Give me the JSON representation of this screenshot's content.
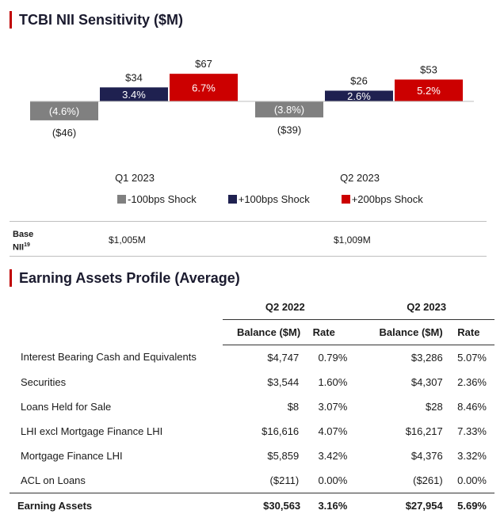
{
  "nii": {
    "title": "TCBI NII Sensitivity ($M)",
    "chart_data": {
      "type": "bar",
      "categories": [
        "Q1 2023",
        "Q2 2023"
      ],
      "series": [
        {
          "name": "-100bps Shock",
          "color": "#808080",
          "values": [
            -46,
            -39
          ],
          "value_labels": [
            "($46)",
            "($39)"
          ],
          "pct_labels": [
            "(4.6%)",
            "(3.8%)"
          ]
        },
        {
          "name": "+100bps Shock",
          "color": "#1f2150",
          "values": [
            34,
            26
          ],
          "value_labels": [
            "$34",
            "$26"
          ],
          "pct_labels": [
            "3.4%",
            "2.6%"
          ]
        },
        {
          "name": "+200bps Shock",
          "color": "#cc0000",
          "values": [
            67,
            53
          ],
          "value_labels": [
            "$67",
            "$53"
          ],
          "pct_labels": [
            "6.7%",
            "5.2%"
          ]
        }
      ],
      "legend_position": "bottom",
      "grid": false
    },
    "base": {
      "label": "Base",
      "label2": "NII",
      "footnote": "19",
      "values": [
        "$1,005M",
        "$1,009M"
      ]
    }
  },
  "earning_assets": {
    "title": "Earning Assets Profile (Average)",
    "periods": [
      "Q2 2022",
      "Q2 2023"
    ],
    "col_headers": [
      "Balance ($M)",
      "Rate",
      "Balance ($M)",
      "Rate"
    ],
    "rows": [
      {
        "label": "Interest Bearing Cash and Equivalents",
        "b1": "$4,747",
        "r1": "0.79%",
        "b2": "$3,286",
        "r2": "5.07%"
      },
      {
        "label": "Securities",
        "b1": "$3,544",
        "r1": "1.60%",
        "b2": "$4,307",
        "r2": "2.36%"
      },
      {
        "label": "Loans Held for Sale",
        "b1": "$8",
        "r1": "3.07%",
        "b2": "$28",
        "r2": "8.46%"
      },
      {
        "label": "LHI excl Mortgage Finance LHI",
        "b1": "$16,616",
        "r1": "4.07%",
        "b2": "$16,217",
        "r2": "7.33%"
      },
      {
        "label": "Mortgage Finance LHI",
        "b1": "$5,859",
        "r1": "3.42%",
        "b2": "$4,376",
        "r2": "3.32%"
      },
      {
        "label": "ACL on Loans",
        "b1": "($211)",
        "r1": "0.00%",
        "b2": "($261)",
        "r2": "0.00%"
      }
    ],
    "total": {
      "label": "Earning Assets",
      "b1": "$30,563",
      "r1": "3.16%",
      "b2": "$27,954",
      "r2": "5.69%"
    }
  }
}
